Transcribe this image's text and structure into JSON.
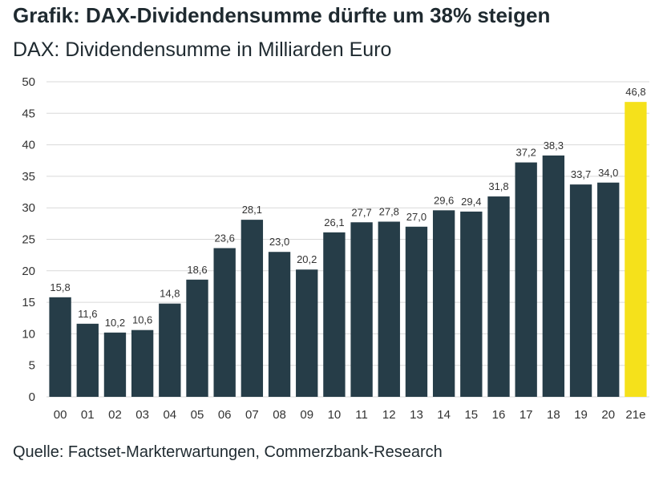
{
  "title": "Grafik: DAX-Dividendensumme dürfte um 38% steigen",
  "subtitle": "DAX: Dividendensumme in Milliarden Euro",
  "source": "Quelle: Factset-Markterwartungen, Commerzbank-Research",
  "chart_data": {
    "type": "bar",
    "categories": [
      "00",
      "01",
      "02",
      "03",
      "04",
      "05",
      "06",
      "07",
      "08",
      "09",
      "10",
      "11",
      "12",
      "13",
      "14",
      "15",
      "16",
      "17",
      "18",
      "19",
      "20",
      "21e"
    ],
    "values": [
      15.8,
      11.6,
      10.2,
      10.6,
      14.8,
      18.6,
      23.6,
      28.1,
      23.0,
      20.2,
      26.1,
      27.7,
      27.8,
      27.0,
      29.6,
      29.4,
      31.8,
      37.2,
      38.3,
      33.7,
      34.0,
      46.8
    ],
    "labels": [
      "15,8",
      "11,6",
      "10,2",
      "10,6",
      "14,8",
      "18,6",
      "23,6",
      "28,1",
      "23,0",
      "20,2",
      "26,1",
      "27,7",
      "27,8",
      "27,0",
      "29,6",
      "29,4",
      "31,8",
      "37,2",
      "38,3",
      "33,7",
      "34,0",
      "46,8"
    ],
    "ylim": [
      0,
      50
    ],
    "yticks": [
      0,
      5,
      10,
      15,
      20,
      25,
      30,
      35,
      40,
      45,
      50
    ],
    "grid": true,
    "colors": {
      "bar": "#263d48",
      "highlight": "#f5e11b",
      "grid": "#d9d9d9"
    },
    "highlight_index": 21
  }
}
